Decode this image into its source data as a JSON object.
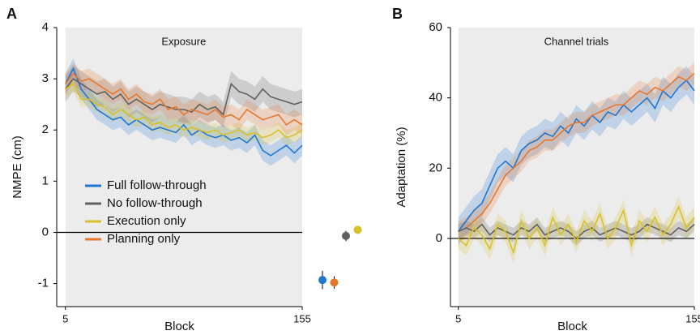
{
  "chart_data": [
    {
      "type": "line",
      "panel": "A",
      "annotation": "Exposure",
      "xlabel": "Block",
      "ylabel": "NMPE (cm)",
      "xlim": [
        -0.5,
        155
      ],
      "ylim": [
        -1.45,
        4
      ],
      "xticks": [
        5,
        155
      ],
      "yticks": [
        -1,
        0,
        1,
        2,
        3,
        4
      ],
      "shade": [
        5,
        155
      ],
      "reference_line": 0,
      "x": [
        5,
        10,
        15,
        20,
        25,
        30,
        35,
        40,
        45,
        50,
        55,
        60,
        65,
        70,
        75,
        80,
        85,
        90,
        95,
        100,
        105,
        110,
        115,
        120,
        125,
        130,
        135,
        140,
        145,
        150,
        155
      ],
      "series": [
        {
          "name": "Full follow-through",
          "color": "#1f77d4",
          "error": 0.2,
          "values": [
            2.9,
            3.2,
            2.8,
            2.6,
            2.4,
            2.3,
            2.2,
            2.25,
            2.1,
            2.2,
            2.1,
            2.0,
            2.05,
            2.0,
            1.95,
            2.1,
            1.9,
            2.0,
            1.9,
            1.85,
            1.9,
            1.8,
            1.85,
            1.75,
            1.9,
            1.6,
            1.5,
            1.6,
            1.7,
            1.55,
            1.7
          ]
        },
        {
          "name": "No follow-through",
          "color": "#606060",
          "error": 0.25,
          "values": [
            2.8,
            3.0,
            2.9,
            2.8,
            2.7,
            2.75,
            2.6,
            2.7,
            2.5,
            2.6,
            2.5,
            2.4,
            2.5,
            2.45,
            2.4,
            2.4,
            2.35,
            2.5,
            2.4,
            2.45,
            2.3,
            2.9,
            2.75,
            2.7,
            2.6,
            2.8,
            2.65,
            2.6,
            2.55,
            2.5,
            2.55
          ]
        },
        {
          "name": "Execution only",
          "color": "#d8c02a",
          "error": 0.15,
          "values": [
            2.8,
            2.9,
            2.6,
            2.6,
            2.5,
            2.45,
            2.3,
            2.4,
            2.3,
            2.2,
            2.25,
            2.1,
            2.15,
            2.05,
            2.1,
            2.0,
            2.05,
            2.0,
            1.95,
            2.0,
            1.9,
            1.95,
            2.0,
            1.9,
            1.95,
            1.85,
            1.9,
            2.0,
            1.85,
            1.9,
            2.0
          ]
        },
        {
          "name": "Planning only",
          "color": "#e8772e",
          "error": 0.2,
          "values": [
            2.9,
            3.1,
            2.95,
            3.0,
            2.9,
            2.8,
            2.7,
            2.8,
            2.6,
            2.7,
            2.55,
            2.5,
            2.6,
            2.4,
            2.45,
            2.3,
            2.4,
            2.35,
            2.3,
            2.4,
            2.25,
            2.3,
            2.2,
            2.4,
            2.3,
            2.2,
            2.25,
            2.3,
            2.1,
            2.2,
            2.1
          ]
        }
      ],
      "after_effect": {
        "values": [
          -0.93,
          -0.98,
          -0.07,
          0.05
        ],
        "errors": [
          0.18,
          0.12,
          0.1,
          0.07
        ]
      }
    },
    {
      "type": "line",
      "panel": "B",
      "annotation": "Channel trials",
      "xlabel": "Block",
      "ylabel": "Adaptation (%)",
      "xlim": [
        0,
        155
      ],
      "ylim": [
        -19.4,
        60
      ],
      "xticks": [
        5,
        155
      ],
      "yticks": [
        0,
        20,
        40,
        60
      ],
      "shade": [
        5,
        155
      ],
      "reference_line": 0,
      "x": [
        5,
        10,
        15,
        20,
        25,
        30,
        35,
        40,
        45,
        50,
        55,
        60,
        65,
        70,
        75,
        80,
        85,
        90,
        95,
        100,
        105,
        110,
        115,
        120,
        125,
        130,
        135,
        140,
        145,
        150,
        155
      ],
      "series": [
        {
          "color": "#1f77d4",
          "error": 4,
          "values": [
            2,
            5,
            8,
            10,
            15,
            20,
            22,
            20,
            25,
            27,
            28,
            30,
            29,
            32,
            30,
            34,
            32,
            35,
            33,
            36,
            35,
            38,
            36,
            38,
            40,
            37,
            42,
            40,
            43,
            45,
            42
          ]
        },
        {
          "color": "#e8772e",
          "error": 3,
          "values": [
            2,
            3,
            5,
            7,
            10,
            14,
            18,
            20,
            22,
            25,
            26,
            28,
            28,
            30,
            32,
            33,
            33,
            35,
            36,
            37,
            38,
            38,
            40,
            42,
            41,
            43,
            42,
            44,
            46,
            45,
            47
          ]
        },
        {
          "color": "#606060",
          "error": 2,
          "values": [
            2,
            3,
            2,
            4,
            1,
            3,
            2,
            1,
            3,
            2,
            4,
            1,
            2,
            3,
            2,
            0,
            2,
            3,
            1,
            2,
            3,
            2,
            1,
            2,
            4,
            3,
            2,
            1,
            3,
            2,
            4
          ]
        },
        {
          "color": "#d8c02a",
          "error": 3,
          "values": [
            0,
            -2,
            3,
            1,
            -3,
            4,
            2,
            -4,
            5,
            0,
            3,
            -2,
            6,
            1,
            4,
            -1,
            5,
            2,
            7,
            0,
            3,
            8,
            -2,
            5,
            2,
            6,
            1,
            4,
            9,
            3,
            6
          ]
        }
      ]
    }
  ]
}
